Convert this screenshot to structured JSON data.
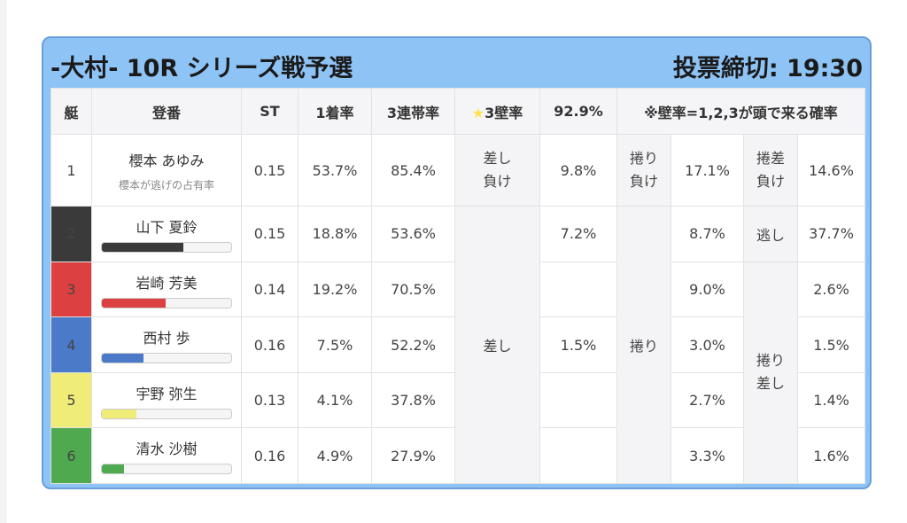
{
  "header": {
    "title": "-大村- 10R シリーズ戦予選",
    "deadline": "投票締切: 19:30"
  },
  "columns": {
    "frame": "艇",
    "entry": "登番",
    "st": "ST",
    "win_rate": "1着率",
    "top3_rate": "3連帯率",
    "star": "★",
    "wall_label": "3壁率",
    "wall_rate": "92.9%",
    "note": "※壁率=1,2,3が頭で来る確率"
  },
  "racers": [
    {
      "frame": "1",
      "name": "櫻本 あゆみ",
      "sub": "櫻本が逃げの占有率",
      "st": "0.15",
      "win": "53.7%",
      "top3": "85.4%",
      "bar_pct": null,
      "bar_color": null
    },
    {
      "frame": "2",
      "name": "山下 夏鈴",
      "st": "0.15",
      "win": "18.8%",
      "top3": "53.6%",
      "bar_pct": 63,
      "bar_color": "#3a3a3a"
    },
    {
      "frame": "3",
      "name": "岩崎 芳美",
      "st": "0.14",
      "win": "19.2%",
      "top3": "70.5%",
      "bar_pct": 49,
      "bar_color": "#dd4040"
    },
    {
      "frame": "4",
      "name": "西村 歩",
      "st": "0.16",
      "win": "7.5%",
      "top3": "52.2%",
      "bar_pct": 32,
      "bar_color": "#4a7ac8"
    },
    {
      "frame": "5",
      "name": "宇野 弥生",
      "st": "0.13",
      "win": "4.1%",
      "top3": "37.8%",
      "bar_pct": 27,
      "bar_color": "#f0ec78"
    },
    {
      "frame": "6",
      "name": "清水 沙樹",
      "st": "0.16",
      "win": "4.9%",
      "top3": "27.9%",
      "bar_pct": 17,
      "bar_color": "#4faa4f"
    }
  ],
  "kimarite": {
    "sashi_make_l1": "差し",
    "sashi_make_l2": "負け",
    "sashi_make_val": "9.8%",
    "makuri_make_l1": "捲り",
    "makuri_make_l2": "負け",
    "makuri_make_val": "17.1%",
    "makurisashi_make_l1": "捲差",
    "makurisashi_make_l2": "負け",
    "makurisashi_make_val": "14.6%",
    "sashi": "差し",
    "sashi_r2": "7.2%",
    "sashi_r4": "1.5%",
    "makuri": "捲り",
    "makuri_r2": "8.7%",
    "makuri_r3": "9.0%",
    "makuri_r4": "3.0%",
    "makuri_r5": "2.7%",
    "makuri_r6": "3.3%",
    "nigashi": "逃し",
    "nigashi_val": "37.7%",
    "makurisashi_l1": "捲り",
    "makurisashi_l2": "差し",
    "ms_r3": "2.6%",
    "ms_r4": "1.5%",
    "ms_r5": "1.4%",
    "ms_r6": "1.6%"
  }
}
